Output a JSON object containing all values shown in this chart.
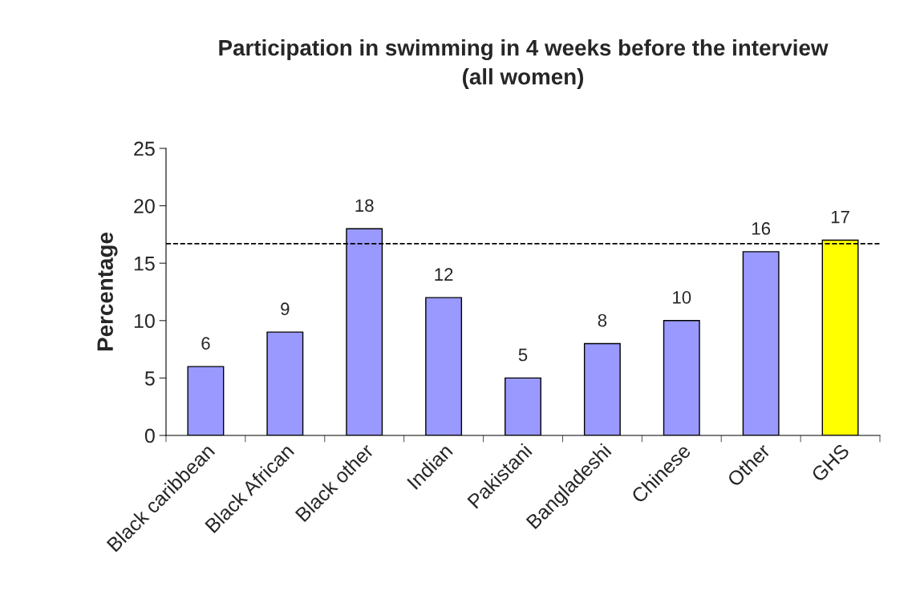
{
  "chart_data": {
    "type": "bar",
    "title": "Participation in swimming in 4 weeks before the interview\n(all women)",
    "ylabel": "Percentage",
    "categories": [
      "Black caribbean",
      "Black African",
      "Black other",
      "Indian",
      "Pakistani",
      "Bangladeshi",
      "Chinese",
      "Other",
      "GHS"
    ],
    "values": [
      6,
      9,
      18,
      12,
      5,
      8,
      10,
      16,
      17
    ],
    "colors": [
      "#9999ff",
      "#9999ff",
      "#9999ff",
      "#9999ff",
      "#9999ff",
      "#9999ff",
      "#9999ff",
      "#9999ff",
      "#ffff00"
    ],
    "ylim": [
      0,
      25
    ],
    "yticks": [
      0,
      5,
      10,
      15,
      20,
      25
    ],
    "grid": false,
    "data_labels": true,
    "ref_lines": [
      {
        "axis": "y",
        "value": 16.7,
        "color": "#000000",
        "line_style": "dashed"
      }
    ]
  }
}
